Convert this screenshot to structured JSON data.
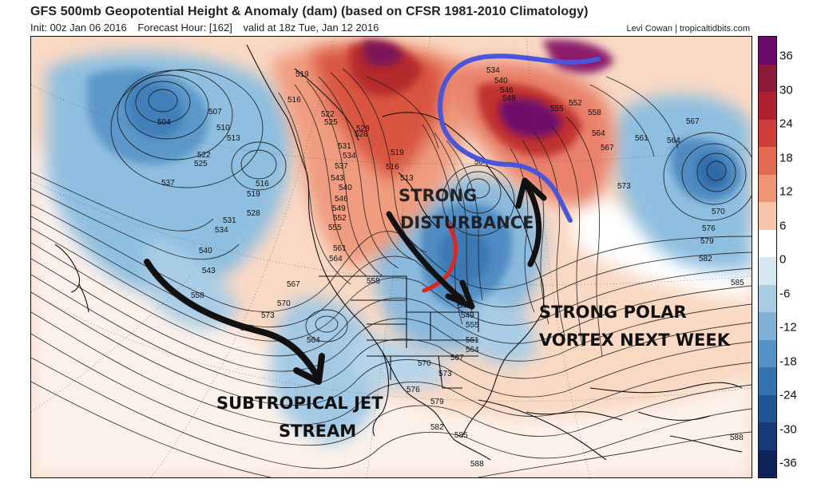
{
  "header": {
    "title": "GFS 500mb Geopotential Height & Anomaly (dam) (based on CFSR 1981-2010 Climatology)",
    "init": "Init: 00z Jan 06 2016",
    "forecast_hour": "Forecast Hour: [162]",
    "valid": "valid at 18z Tue, Jan 12 2016",
    "credit": "Levi Cowan | tropicaltidbits.com"
  },
  "colorbar": {
    "tick_labels": [
      "36",
      "30",
      "24",
      "18",
      "12",
      "6",
      "0",
      "-6",
      "-12",
      "-18",
      "-24",
      "-30",
      "-36"
    ],
    "colors": [
      "#6b0a6b",
      "#8e1a3a",
      "#b0202e",
      "#cf3e3a",
      "#e26a50",
      "#ef9576",
      "#f8c5a8",
      "#ffffff",
      "#d7e7f2",
      "#a9cce3",
      "#7fb2d5",
      "#5592c4",
      "#3473b0",
      "#1f5595",
      "#163a78",
      "#0e2459"
    ]
  },
  "contour_labels": [
    "519",
    "516",
    "507",
    "504",
    "510",
    "513",
    "522",
    "525",
    "537",
    "519",
    "516",
    "528",
    "531",
    "534",
    "540",
    "543",
    "558",
    "567",
    "570",
    "573",
    "576",
    "522",
    "525",
    "528",
    "531",
    "534",
    "537",
    "540",
    "543",
    "546",
    "549",
    "552",
    "555",
    "561",
    "564",
    "528",
    "519",
    "513",
    "516",
    "534",
    "540",
    "546",
    "548",
    "555",
    "552",
    "558",
    "564",
    "567",
    "561",
    "573",
    "567",
    "564",
    "570",
    "576",
    "579",
    "582",
    "585",
    "558",
    "543",
    "549",
    "555",
    "561",
    "564",
    "567",
    "570",
    "573",
    "576",
    "579",
    "582",
    "585",
    "588",
    "588",
    "564",
    "504"
  ],
  "annotations": {
    "strong_disturbance_line1": "STRONG",
    "strong_disturbance_line2": "DISTURBANCE",
    "polar_vortex_line1": "STRONG POLAR",
    "polar_vortex_line2": "VORTEX NEXT WEEK",
    "jet_line1": "SUBTROPICAL JET",
    "jet_line2": "STREAM"
  },
  "colors": {
    "blue_trough_line": "#4a56d9",
    "red_line": "#e0241e",
    "arrow": "#111111"
  }
}
